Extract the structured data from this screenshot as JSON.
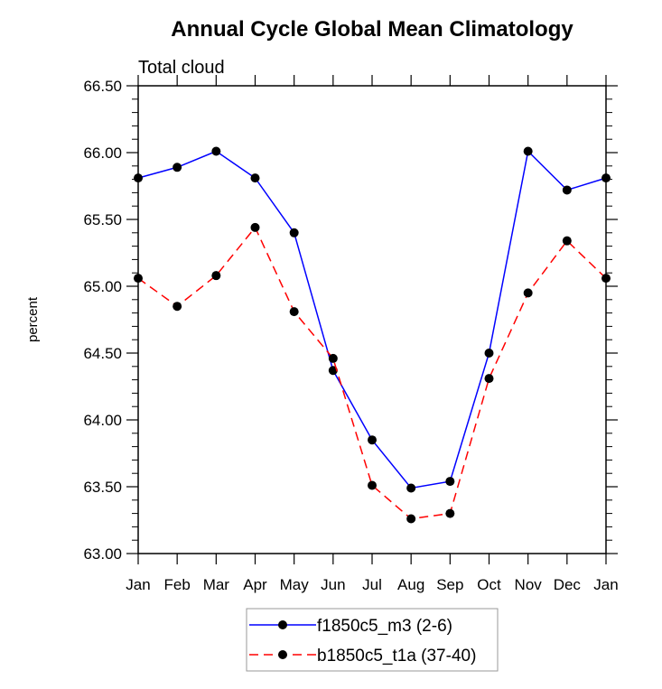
{
  "chart_data": {
    "type": "line",
    "title": "Annual Cycle Global Mean Climatology",
    "subtitle": "Total cloud",
    "xlabel": "",
    "ylabel": "percent",
    "categories": [
      "Jan",
      "Feb",
      "Mar",
      "Apr",
      "May",
      "Jun",
      "Jul",
      "Aug",
      "Sep",
      "Oct",
      "Nov",
      "Dec",
      "Jan"
    ],
    "ylim": [
      63.0,
      66.5
    ],
    "yticks": [
      63.0,
      63.5,
      64.0,
      64.5,
      65.0,
      65.5,
      66.0,
      66.5
    ],
    "ytick_labels": [
      "63.00",
      "63.50",
      "64.00",
      "64.50",
      "65.00",
      "65.50",
      "66.00",
      "66.50"
    ],
    "yminor_step": 0.1,
    "grid": false,
    "legend_position": "bottom-center",
    "series": [
      {
        "name": "f1850c5_m3 (2-6)",
        "color": "#0000ff",
        "dash": "solid",
        "marker": "filled-circle",
        "values": [
          65.81,
          65.89,
          66.01,
          65.81,
          65.4,
          64.37,
          63.85,
          63.49,
          63.54,
          64.5,
          66.01,
          65.72,
          65.81
        ]
      },
      {
        "name": "b1850c5_t1a (37-40)",
        "color": "#ff0000",
        "dash": "dashed",
        "marker": "filled-circle",
        "values": [
          65.06,
          64.85,
          65.08,
          65.44,
          64.81,
          64.46,
          63.51,
          63.26,
          63.3,
          64.31,
          64.95,
          65.34,
          65.06
        ]
      }
    ]
  }
}
